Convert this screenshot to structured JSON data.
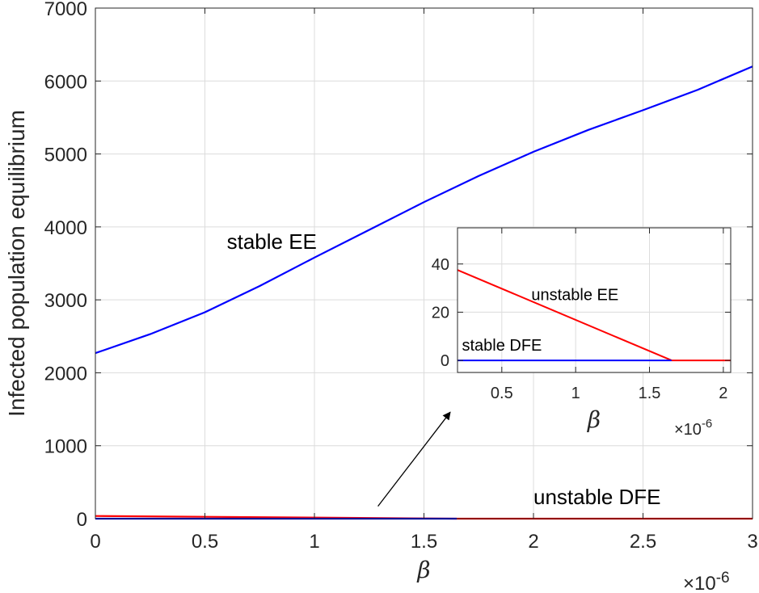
{
  "chart_data": [
    {
      "type": "line",
      "id": "main",
      "xlabel": "β",
      "ylabel": "Infected population equilibrium",
      "x_multiplier_label": "×10",
      "x_multiplier_exp": "-6",
      "xlim": [
        0,
        3
      ],
      "ylim": [
        0,
        7000
      ],
      "xticks": [
        0,
        0.5,
        1,
        1.5,
        2,
        2.5,
        3
      ],
      "xtick_labels": [
        "0",
        "0.5",
        "1",
        "1.5",
        "2",
        "2.5",
        "3"
      ],
      "yticks": [
        0,
        1000,
        2000,
        3000,
        4000,
        5000,
        6000,
        7000
      ],
      "ytick_labels": [
        "0",
        "1000",
        "2000",
        "3000",
        "4000",
        "5000",
        "6000",
        "7000"
      ],
      "grid": true,
      "series": [
        {
          "color": "#0000ff",
          "x": [
            0,
            0.25,
            0.5,
            0.75,
            1.0,
            1.25,
            1.5,
            1.75,
            2.0,
            2.25,
            2.5,
            2.75,
            3.0
          ],
          "y": [
            2270,
            2530,
            2830,
            3190,
            3580,
            3960,
            4340,
            4700,
            5030,
            5330,
            5600,
            5880,
            6200
          ]
        },
        {
          "color": "#ff0000",
          "x": [
            0,
            1.65
          ],
          "y": [
            37,
            0
          ]
        },
        {
          "color": "#0000ff",
          "x": [
            0,
            1.65
          ],
          "y": [
            0,
            0
          ]
        },
        {
          "color": "#ff0000",
          "x": [
            1.65,
            3.0
          ],
          "y": [
            0,
            0
          ]
        }
      ],
      "annotations": [
        {
          "text": "stable EE",
          "x": 0.6,
          "y": 3700
        },
        {
          "text": "unstable  DFE",
          "x": 2.0,
          "y": 200
        }
      ],
      "arrow": {
        "from": [
          1.29,
          170
        ],
        "to": [
          1.62,
          1460
        ]
      }
    },
    {
      "type": "line",
      "id": "inset",
      "xlabel": "β",
      "x_multiplier_label": "×10",
      "x_multiplier_exp": "-6",
      "xlim": [
        0.2,
        2.05
      ],
      "ylim": [
        -5,
        55
      ],
      "xticks": [
        0.5,
        1,
        1.5,
        2
      ],
      "xtick_labels": [
        "0.5",
        "1",
        "1.5",
        "2"
      ],
      "yticks": [
        0,
        20,
        40
      ],
      "ytick_labels": [
        "0",
        "20",
        "40"
      ],
      "grid": true,
      "series": [
        {
          "color": "#ff0000",
          "x": [
            0.2,
            1.65
          ],
          "y": [
            37.5,
            0
          ]
        },
        {
          "color": "#0000ff",
          "x": [
            0.2,
            1.65
          ],
          "y": [
            0,
            0
          ]
        },
        {
          "color": "#ff0000",
          "x": [
            1.65,
            2.05
          ],
          "y": [
            0,
            0
          ]
        }
      ],
      "annotations": [
        {
          "text": "unstable EE",
          "x": 0.7,
          "y": 25
        },
        {
          "text": "stable  DFE",
          "x": 0.23,
          "y": 4
        }
      ]
    }
  ]
}
